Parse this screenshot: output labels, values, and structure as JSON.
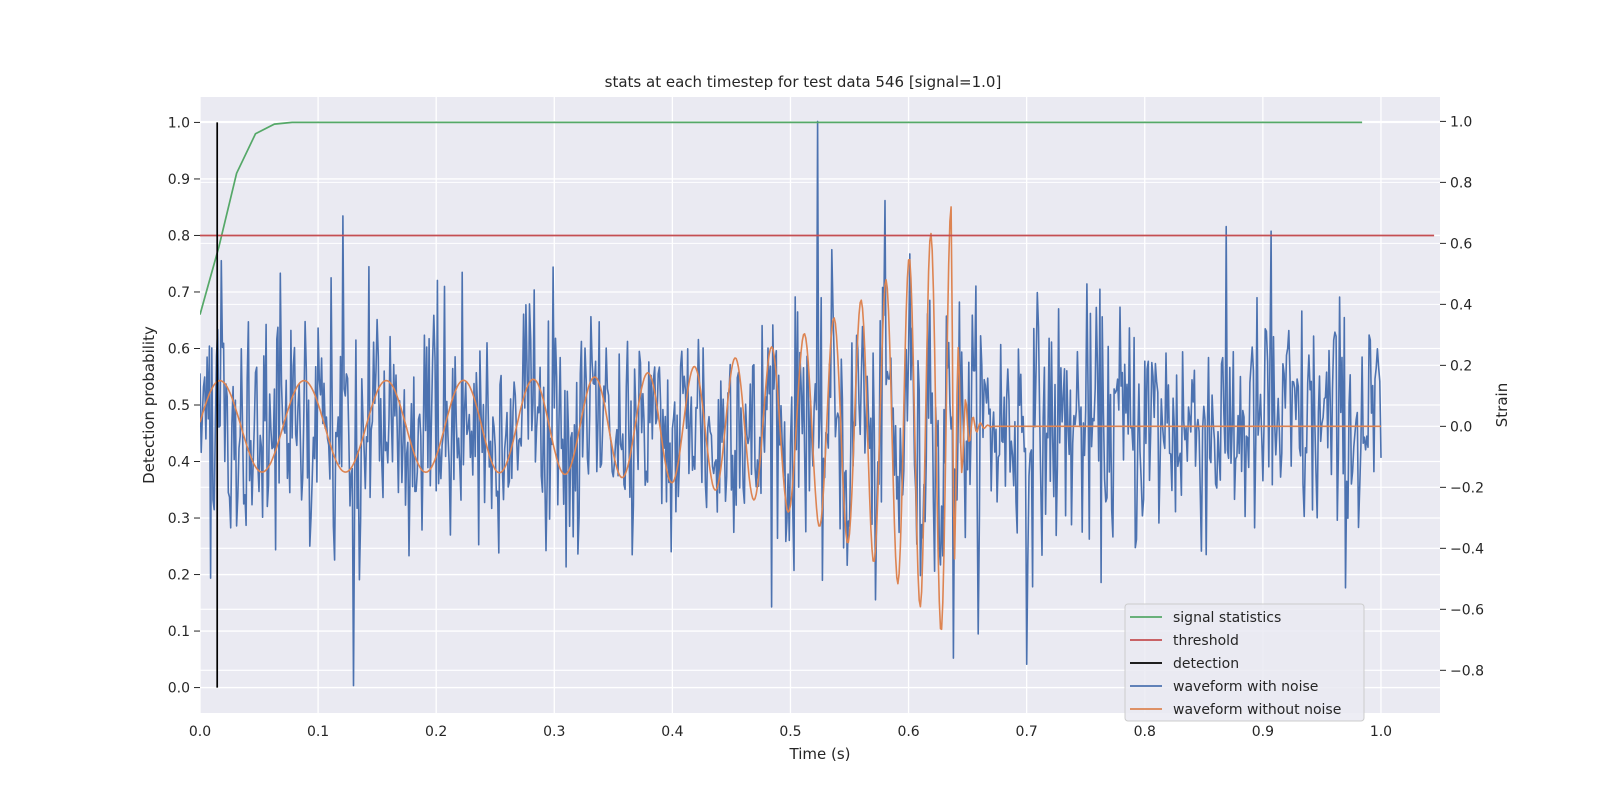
{
  "chart_data": {
    "type": "line",
    "title": "stats at each timestep for test data 546 [signal=1.0]",
    "xlabel": "Time (s)",
    "ylabel_left": "Detection probability",
    "ylabel_right": "Strain",
    "xlim": [
      0.0,
      1.05
    ],
    "ylim_left": [
      -0.045,
      1.045
    ],
    "ylim_right": [
      -0.94,
      1.08
    ],
    "x_ticks": [
      0.0,
      0.1,
      0.2,
      0.3,
      0.4,
      0.5,
      0.6,
      0.7,
      0.8,
      0.9,
      1.0
    ],
    "x_tick_labels": [
      "0.0",
      "0.1",
      "0.2",
      "0.3",
      "0.4",
      "0.5",
      "0.6",
      "0.7",
      "0.8",
      "0.9",
      "1.0"
    ],
    "y_left_ticks": [
      0.0,
      0.1,
      0.2,
      0.3,
      0.4,
      0.5,
      0.6,
      0.7,
      0.8,
      0.9,
      1.0
    ],
    "y_left_tick_labels": [
      "0.0",
      "0.1",
      "0.2",
      "0.3",
      "0.4",
      "0.5",
      "0.6",
      "0.7",
      "0.8",
      "0.9",
      "1.0"
    ],
    "y_right_ticks": [
      -0.8,
      -0.6,
      -0.4,
      -0.2,
      0.0,
      0.2,
      0.4,
      0.6,
      0.8,
      1.0
    ],
    "y_right_tick_labels": [
      "−0.8",
      "−0.6",
      "−0.4",
      "−0.2",
      "0.0",
      "0.2",
      "0.4",
      "0.6",
      "0.8",
      "1.0"
    ],
    "grid": true,
    "legend_position": "bottom-right",
    "colors": {
      "signal_statistics": "#55a868",
      "threshold": "#c44e52",
      "detection": "#000000",
      "waveform_with_noise": "#4c72b0",
      "waveform_without_noise": "#dd8452",
      "plot_background": "#eaeaf2",
      "grid": "#ffffff"
    },
    "series": [
      {
        "name": "signal statistics",
        "axis": "left",
        "x": [
          0.0,
          0.016,
          0.031,
          0.047,
          0.063,
          0.078,
          0.094,
          0.2,
          0.4,
          0.6,
          0.8,
          0.984
        ],
        "y": [
          0.66,
          0.78,
          0.91,
          0.98,
          0.997,
          1.0,
          1.0,
          1.0,
          1.0,
          1.0,
          1.0,
          1.0
        ]
      },
      {
        "name": "threshold",
        "axis": "left",
        "x": [
          0.0,
          1.045
        ],
        "y": [
          0.8,
          0.8
        ]
      },
      {
        "name": "detection",
        "axis": "left",
        "x": [
          0.0146,
          0.0146
        ],
        "y": [
          0.0,
          1.0
        ]
      },
      {
        "name": "waveform with noise",
        "axis": "right",
        "x_start": 0.0,
        "x_end": 1.0,
        "noise_std": 0.2,
        "highlighted_peaks": [
          {
            "x": 0.523,
            "y": 1.0
          },
          {
            "x": 0.13,
            "y": -0.85
          },
          {
            "x": 0.121,
            "y": 0.69
          },
          {
            "x": 0.638,
            "y": -0.76
          },
          {
            "x": 0.907,
            "y": 0.64
          },
          {
            "x": 0.7,
            "y": -0.78
          }
        ]
      },
      {
        "name": "waveform without noise",
        "axis": "right",
        "x_start": 0.0,
        "x_end": 1.0,
        "chirp": {
          "f_start": 14,
          "f_end": 60,
          "merger_time": 0.636,
          "a_start": 0.15,
          "a_peak": 0.72,
          "ringdown_end": 0.67
        }
      }
    ]
  }
}
